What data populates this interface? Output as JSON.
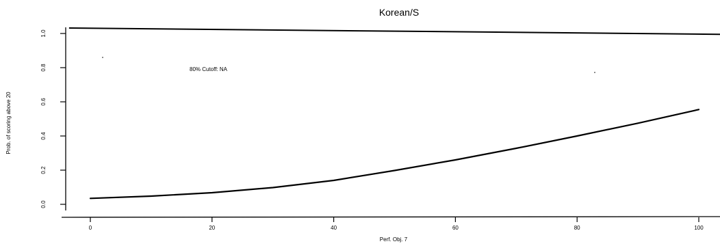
{
  "chart_data": {
    "type": "line",
    "title": "Korean/S",
    "xlabel": "Perf. Obj. 7",
    "ylabel": "Prob. of scoring above 20",
    "xlim": [
      0,
      100
    ],
    "ylim": [
      0,
      1
    ],
    "xticks": [
      0,
      20,
      40,
      60,
      80,
      100
    ],
    "yticks": [
      0.0,
      0.2,
      0.4,
      0.6,
      0.8,
      1.0
    ],
    "ytick_labels": [
      "0.0",
      "0.2",
      "0.4",
      "0.6",
      "0.8",
      "1.0"
    ],
    "grid": false,
    "annotation": "80% Cutoff: NA",
    "series": [
      {
        "x": [
          0,
          10,
          20,
          30,
          40,
          50,
          60,
          70,
          80,
          90,
          100
        ],
        "y": [
          0.035,
          0.048,
          0.068,
          0.098,
          0.14,
          0.198,
          0.26,
          0.328,
          0.4,
          0.475,
          0.555
        ]
      }
    ],
    "upper_reference_line": {
      "x": [
        -3.5,
        104
      ],
      "y": [
        1.032,
        0.995
      ]
    }
  }
}
